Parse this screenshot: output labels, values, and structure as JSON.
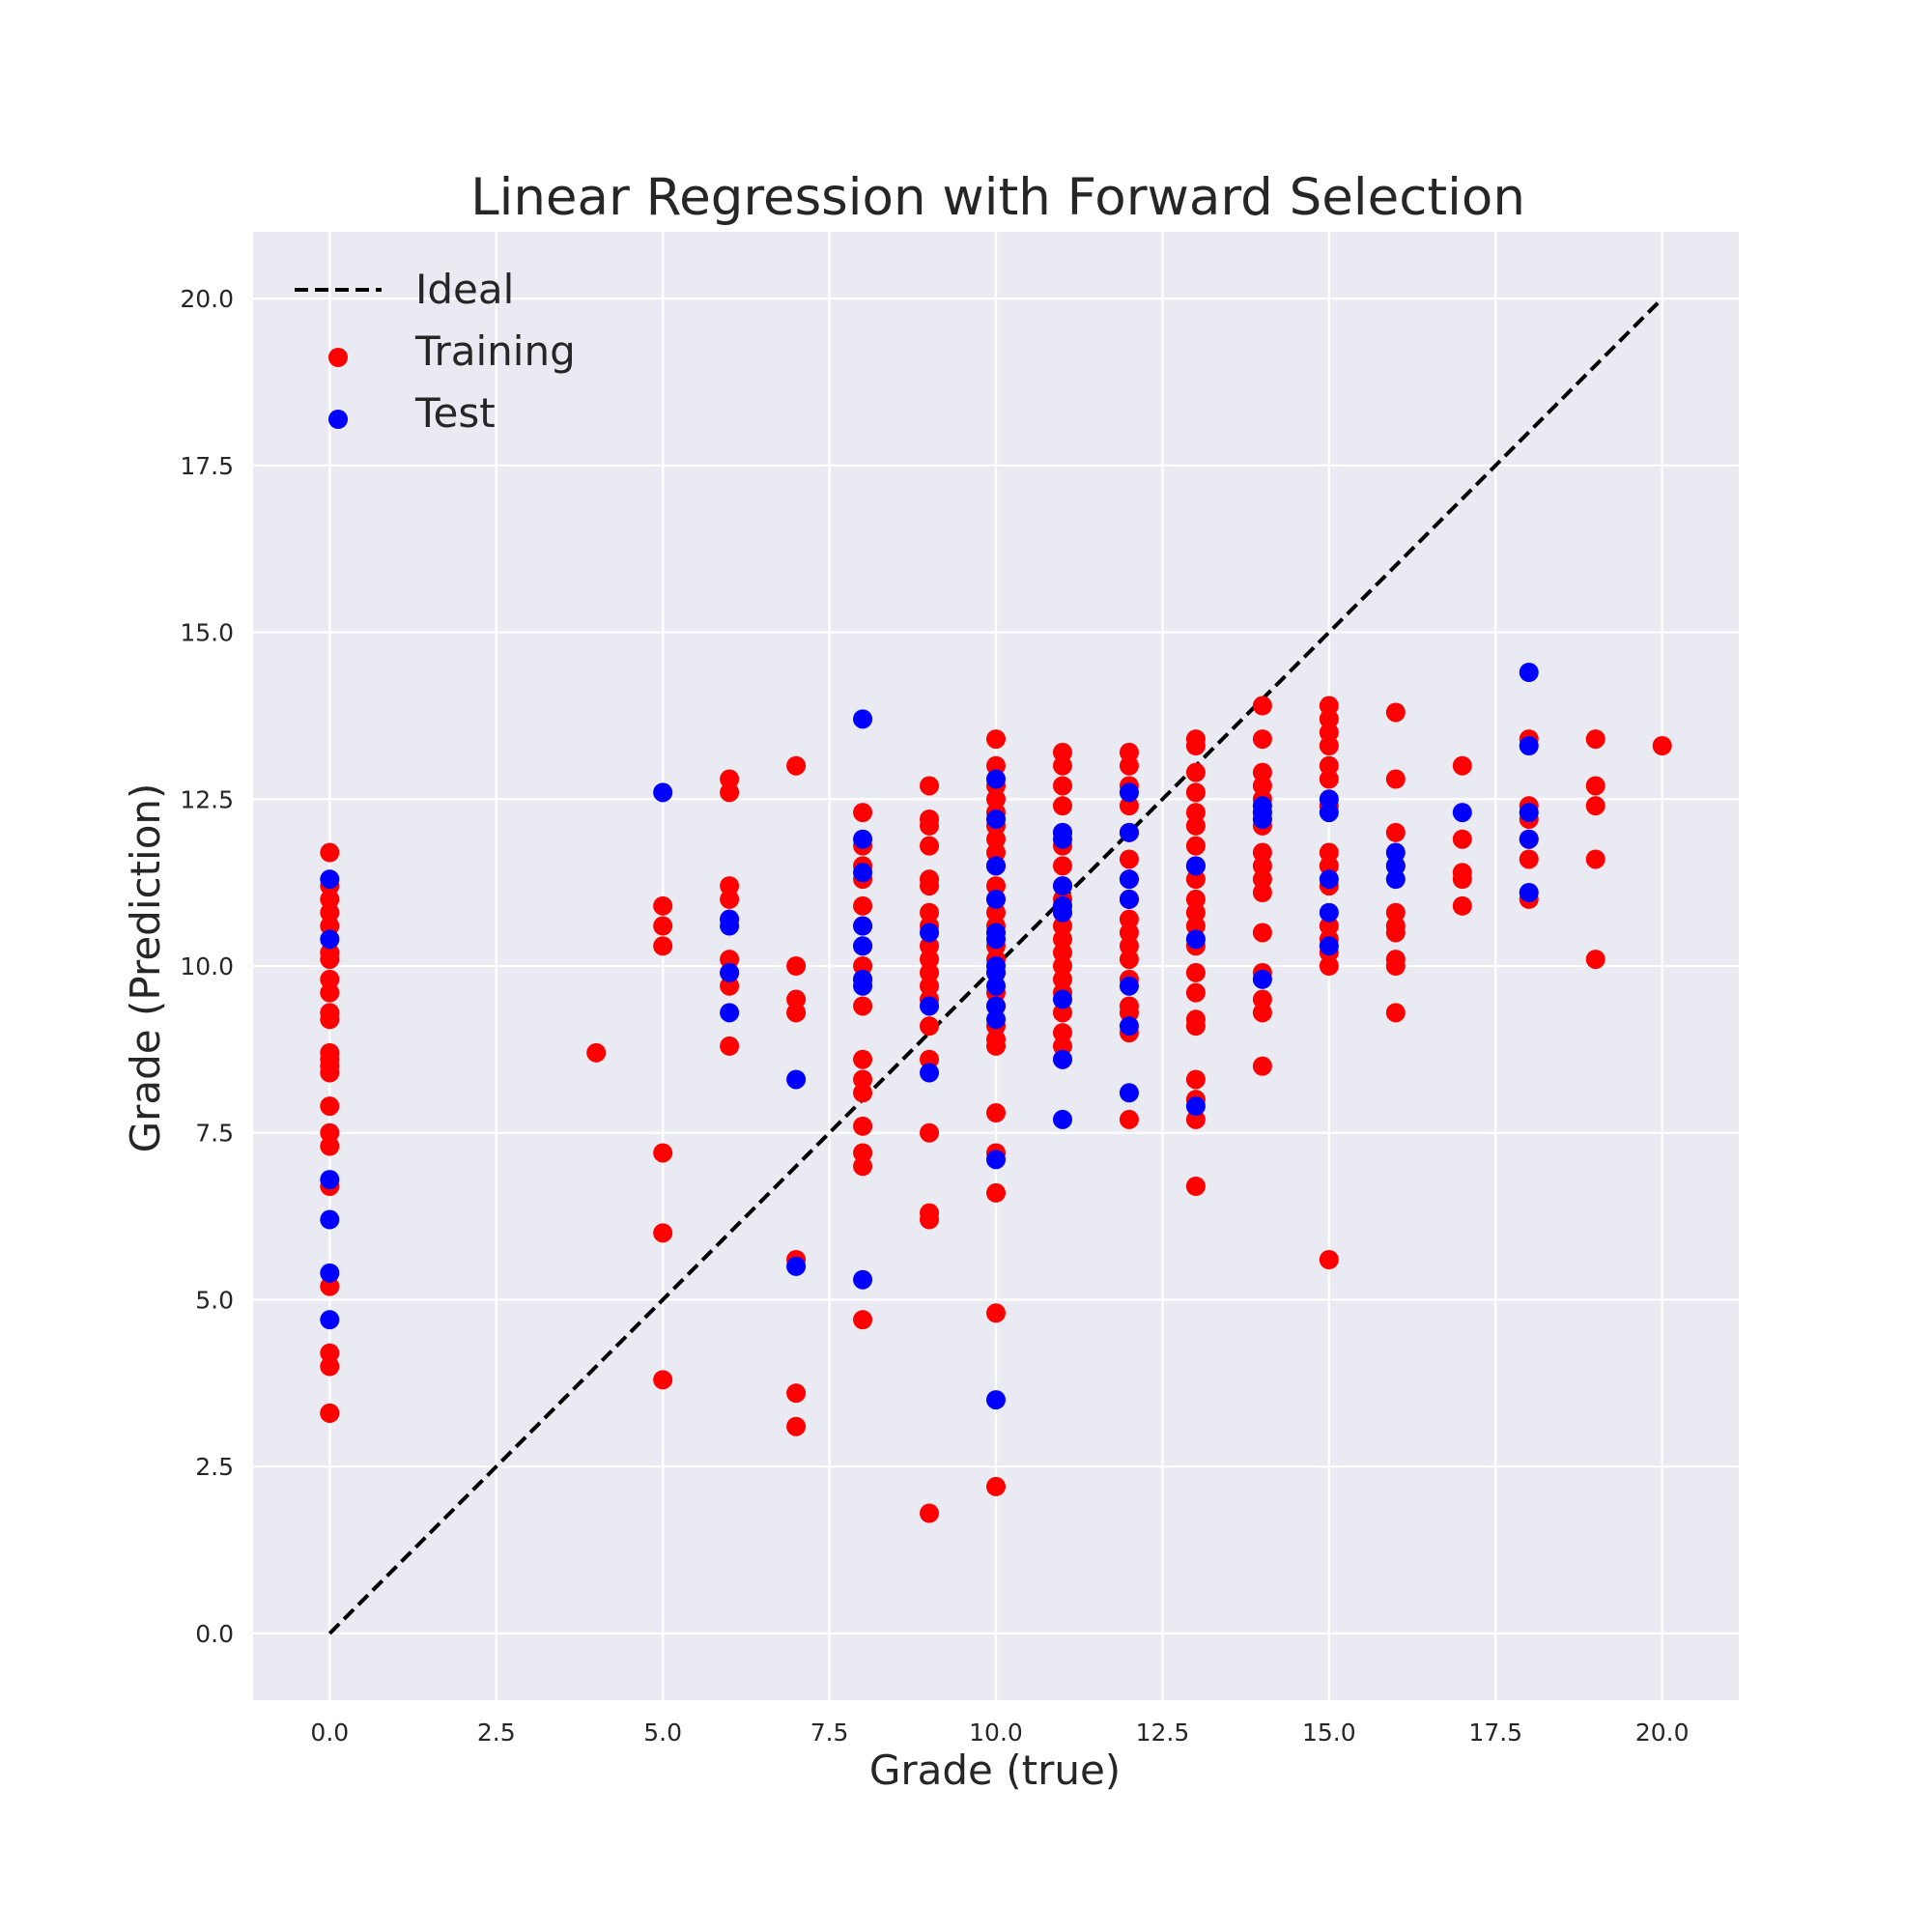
{
  "chart_data": {
    "type": "scatter",
    "title": "Linear Regression with Forward Selection",
    "xlabel": "Grade (true)",
    "ylabel": "Grade (Prediction)",
    "xlim": [
      -1.15,
      21.15
    ],
    "ylim": [
      -1.0,
      21.0
    ],
    "xticks": [
      0.0,
      2.5,
      5.0,
      7.5,
      10.0,
      12.5,
      15.0,
      17.5,
      20.0
    ],
    "yticks": [
      0.0,
      2.5,
      5.0,
      7.5,
      10.0,
      12.5,
      15.0,
      17.5,
      20.0
    ],
    "xtick_labels": [
      "0.0",
      "2.5",
      "5.0",
      "7.5",
      "10.0",
      "12.5",
      "15.0",
      "17.5",
      "20.0"
    ],
    "ytick_labels": [
      "0.0",
      "2.5",
      "5.0",
      "7.5",
      "10.0",
      "12.5",
      "15.0",
      "17.5",
      "20.0"
    ],
    "grid": true,
    "background": "#EAEAF2",
    "legend_position": "top-left",
    "lines": [
      {
        "name": "Ideal",
        "x": [
          0,
          20
        ],
        "y": [
          0,
          20
        ],
        "color": "#000000",
        "style": "dashed"
      }
    ],
    "series": [
      {
        "name": "Training",
        "color": "#FF0000",
        "points": [
          [
            0,
            11.7
          ],
          [
            0,
            11.2
          ],
          [
            0,
            11.0
          ],
          [
            0,
            10.8
          ],
          [
            0,
            10.6
          ],
          [
            0,
            10.2
          ],
          [
            0,
            10.1
          ],
          [
            0,
            9.8
          ],
          [
            0,
            9.6
          ],
          [
            0,
            9.3
          ],
          [
            0,
            9.2
          ],
          [
            0,
            8.7
          ],
          [
            0,
            8.6
          ],
          [
            0,
            8.5
          ],
          [
            0,
            8.4
          ],
          [
            0,
            7.9
          ],
          [
            0,
            7.5
          ],
          [
            0,
            7.3
          ],
          [
            0,
            6.7
          ],
          [
            0,
            5.2
          ],
          [
            0,
            4.2
          ],
          [
            0,
            4.0
          ],
          [
            0,
            3.3
          ],
          [
            0,
            3.3
          ],
          [
            4,
            8.7
          ],
          [
            5,
            10.9
          ],
          [
            5,
            10.6
          ],
          [
            5,
            10.3
          ],
          [
            5,
            7.2
          ],
          [
            5,
            6.0
          ],
          [
            5,
            3.8
          ],
          [
            6,
            12.8
          ],
          [
            6,
            12.6
          ],
          [
            6,
            11.2
          ],
          [
            6,
            11.0
          ],
          [
            6,
            10.7
          ],
          [
            6,
            10.1
          ],
          [
            6,
            9.9
          ],
          [
            6,
            9.7
          ],
          [
            6,
            8.8
          ],
          [
            7,
            13.0
          ],
          [
            7,
            10.0
          ],
          [
            7,
            9.5
          ],
          [
            7,
            9.3
          ],
          [
            7,
            5.6
          ],
          [
            7,
            3.6
          ],
          [
            7,
            3.1
          ],
          [
            8,
            12.3
          ],
          [
            8,
            11.8
          ],
          [
            8,
            11.5
          ],
          [
            8,
            11.3
          ],
          [
            8,
            10.9
          ],
          [
            8,
            10.6
          ],
          [
            8,
            10.3
          ],
          [
            8,
            10.0
          ],
          [
            8,
            9.8
          ],
          [
            8,
            9.4
          ],
          [
            8,
            8.6
          ],
          [
            8,
            8.3
          ],
          [
            8,
            8.1
          ],
          [
            8,
            7.6
          ],
          [
            8,
            7.2
          ],
          [
            8,
            7.0
          ],
          [
            8,
            4.7
          ],
          [
            9,
            12.7
          ],
          [
            9,
            12.2
          ],
          [
            9,
            12.1
          ],
          [
            9,
            11.8
          ],
          [
            9,
            11.3
          ],
          [
            9,
            11.2
          ],
          [
            9,
            10.8
          ],
          [
            9,
            10.6
          ],
          [
            9,
            10.3
          ],
          [
            9,
            10.1
          ],
          [
            9,
            9.9
          ],
          [
            9,
            9.7
          ],
          [
            9,
            9.5
          ],
          [
            9,
            9.1
          ],
          [
            9,
            8.6
          ],
          [
            9,
            7.5
          ],
          [
            9,
            6.3
          ],
          [
            9,
            6.2
          ],
          [
            9,
            1.8
          ],
          [
            10,
            13.4
          ],
          [
            10,
            13.0
          ],
          [
            10,
            12.7
          ],
          [
            10,
            12.5
          ],
          [
            10,
            12.3
          ],
          [
            10,
            12.1
          ],
          [
            10,
            11.9
          ],
          [
            10,
            11.7
          ],
          [
            10,
            11.5
          ],
          [
            10,
            11.2
          ],
          [
            10,
            11.0
          ],
          [
            10,
            10.8
          ],
          [
            10,
            10.6
          ],
          [
            10,
            10.3
          ],
          [
            10,
            10.1
          ],
          [
            10,
            9.9
          ],
          [
            10,
            9.6
          ],
          [
            10,
            9.4
          ],
          [
            10,
            9.1
          ],
          [
            10,
            8.9
          ],
          [
            10,
            8.8
          ],
          [
            10,
            7.8
          ],
          [
            10,
            7.2
          ],
          [
            10,
            6.6
          ],
          [
            10,
            4.8
          ],
          [
            10,
            2.2
          ],
          [
            11,
            13.2
          ],
          [
            11,
            13.0
          ],
          [
            11,
            12.7
          ],
          [
            11,
            12.4
          ],
          [
            11,
            12.0
          ],
          [
            11,
            11.8
          ],
          [
            11,
            11.5
          ],
          [
            11,
            11.2
          ],
          [
            11,
            11.0
          ],
          [
            11,
            10.8
          ],
          [
            11,
            10.6
          ],
          [
            11,
            10.4
          ],
          [
            11,
            10.2
          ],
          [
            11,
            10.0
          ],
          [
            11,
            9.8
          ],
          [
            11,
            9.6
          ],
          [
            11,
            9.3
          ],
          [
            11,
            9.0
          ],
          [
            11,
            8.8
          ],
          [
            11,
            8.6
          ],
          [
            12,
            13.2
          ],
          [
            12,
            13.0
          ],
          [
            12,
            12.7
          ],
          [
            12,
            12.4
          ],
          [
            12,
            12.0
          ],
          [
            12,
            11.6
          ],
          [
            12,
            11.3
          ],
          [
            12,
            11.0
          ],
          [
            12,
            10.7
          ],
          [
            12,
            10.5
          ],
          [
            12,
            10.3
          ],
          [
            12,
            10.1
          ],
          [
            12,
            9.8
          ],
          [
            12,
            9.4
          ],
          [
            12,
            9.3
          ],
          [
            12,
            9.0
          ],
          [
            12,
            7.7
          ],
          [
            13,
            13.4
          ],
          [
            13,
            13.3
          ],
          [
            13,
            12.9
          ],
          [
            13,
            12.6
          ],
          [
            13,
            12.3
          ],
          [
            13,
            12.1
          ],
          [
            13,
            11.8
          ],
          [
            13,
            11.5
          ],
          [
            13,
            11.3
          ],
          [
            13,
            11.0
          ],
          [
            13,
            10.8
          ],
          [
            13,
            10.6
          ],
          [
            13,
            10.3
          ],
          [
            13,
            9.9
          ],
          [
            13,
            9.6
          ],
          [
            13,
            9.2
          ],
          [
            13,
            9.1
          ],
          [
            13,
            8.3
          ],
          [
            13,
            8.0
          ],
          [
            13,
            7.7
          ],
          [
            13,
            6.7
          ],
          [
            14,
            13.9
          ],
          [
            14,
            13.4
          ],
          [
            14,
            12.9
          ],
          [
            14,
            12.7
          ],
          [
            14,
            12.5
          ],
          [
            14,
            12.3
          ],
          [
            14,
            12.1
          ],
          [
            14,
            11.7
          ],
          [
            14,
            11.5
          ],
          [
            14,
            11.3
          ],
          [
            14,
            11.1
          ],
          [
            14,
            10.5
          ],
          [
            14,
            9.9
          ],
          [
            14,
            9.5
          ],
          [
            14,
            9.3
          ],
          [
            14,
            8.5
          ],
          [
            15,
            13.9
          ],
          [
            15,
            13.7
          ],
          [
            15,
            13.5
          ],
          [
            15,
            13.3
          ],
          [
            15,
            13.0
          ],
          [
            15,
            12.8
          ],
          [
            15,
            12.4
          ],
          [
            15,
            11.7
          ],
          [
            15,
            11.5
          ],
          [
            15,
            11.2
          ],
          [
            15,
            10.6
          ],
          [
            15,
            10.4
          ],
          [
            15,
            10.2
          ],
          [
            15,
            10.0
          ],
          [
            15,
            5.6
          ],
          [
            16,
            13.8
          ],
          [
            16,
            12.8
          ],
          [
            16,
            12.0
          ],
          [
            16,
            11.5
          ],
          [
            16,
            10.8
          ],
          [
            16,
            10.6
          ],
          [
            16,
            10.5
          ],
          [
            16,
            10.1
          ],
          [
            16,
            10.0
          ],
          [
            16,
            9.3
          ],
          [
            17,
            13.0
          ],
          [
            17,
            11.9
          ],
          [
            17,
            11.4
          ],
          [
            17,
            11.3
          ],
          [
            17,
            10.9
          ],
          [
            18,
            13.4
          ],
          [
            18,
            12.4
          ],
          [
            18,
            12.2
          ],
          [
            18,
            11.9
          ],
          [
            18,
            11.6
          ],
          [
            18,
            11.0
          ],
          [
            19,
            13.4
          ],
          [
            19,
            12.7
          ],
          [
            19,
            12.4
          ],
          [
            19,
            11.6
          ],
          [
            19,
            10.1
          ],
          [
            20,
            13.3
          ]
        ]
      },
      {
        "name": "Test",
        "color": "#0000FF",
        "points": [
          [
            0,
            11.3
          ],
          [
            0,
            10.4
          ],
          [
            0,
            6.8
          ],
          [
            0,
            6.2
          ],
          [
            0,
            5.4
          ],
          [
            0,
            4.7
          ],
          [
            5,
            12.6
          ],
          [
            6,
            10.7
          ],
          [
            6,
            10.6
          ],
          [
            6,
            9.9
          ],
          [
            6,
            9.3
          ],
          [
            7,
            8.3
          ],
          [
            7,
            5.5
          ],
          [
            8,
            13.7
          ],
          [
            8,
            11.9
          ],
          [
            8,
            11.4
          ],
          [
            8,
            10.6
          ],
          [
            8,
            10.3
          ],
          [
            8,
            9.8
          ],
          [
            8,
            9.7
          ],
          [
            8,
            5.3
          ],
          [
            9,
            10.5
          ],
          [
            9,
            9.4
          ],
          [
            9,
            8.4
          ],
          [
            10,
            12.8
          ],
          [
            10,
            12.2
          ],
          [
            10,
            11.5
          ],
          [
            10,
            11.0
          ],
          [
            10,
            10.5
          ],
          [
            10,
            10.4
          ],
          [
            10,
            10.0
          ],
          [
            10,
            9.9
          ],
          [
            10,
            9.7
          ],
          [
            10,
            9.4
          ],
          [
            10,
            9.2
          ],
          [
            10,
            7.1
          ],
          [
            10,
            3.5
          ],
          [
            11,
            12.0
          ],
          [
            11,
            11.9
          ],
          [
            11,
            11.2
          ],
          [
            11,
            10.9
          ],
          [
            11,
            10.8
          ],
          [
            11,
            9.5
          ],
          [
            11,
            8.6
          ],
          [
            11,
            7.7
          ],
          [
            12,
            12.6
          ],
          [
            12,
            12.0
          ],
          [
            12,
            11.3
          ],
          [
            12,
            11.0
          ],
          [
            12,
            9.7
          ],
          [
            12,
            9.1
          ],
          [
            12,
            8.1
          ],
          [
            13,
            11.5
          ],
          [
            13,
            10.4
          ],
          [
            13,
            7.9
          ],
          [
            14,
            12.4
          ],
          [
            14,
            12.3
          ],
          [
            14,
            12.2
          ],
          [
            14,
            9.8
          ],
          [
            15,
            12.5
          ],
          [
            15,
            12.3
          ],
          [
            15,
            11.3
          ],
          [
            15,
            10.8
          ],
          [
            15,
            10.3
          ],
          [
            16,
            11.7
          ],
          [
            16,
            11.5
          ],
          [
            16,
            11.3
          ],
          [
            17,
            12.3
          ],
          [
            18,
            14.4
          ],
          [
            18,
            13.3
          ],
          [
            18,
            12.3
          ],
          [
            18,
            11.9
          ],
          [
            18,
            11.1
          ]
        ]
      }
    ]
  }
}
